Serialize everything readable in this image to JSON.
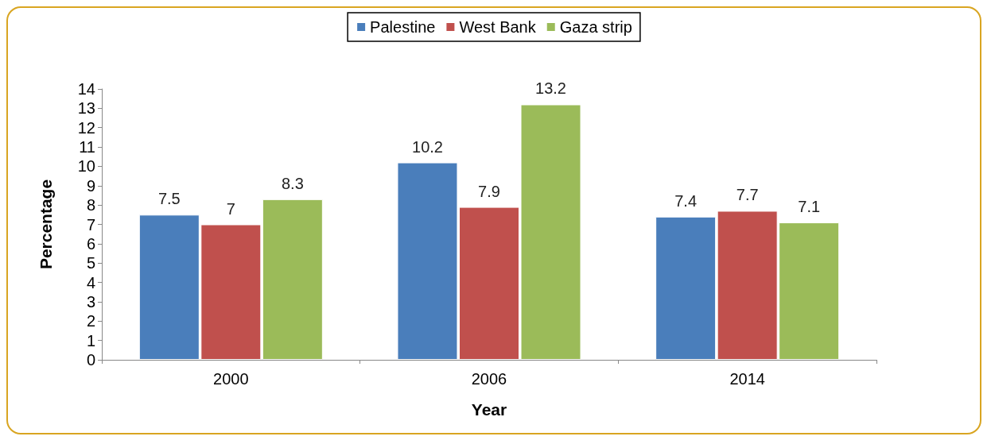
{
  "chart_data": {
    "type": "bar",
    "xlabel": "Year",
    "ylabel": "Percentage",
    "categories": [
      "2000",
      "2006",
      "2014"
    ],
    "series": [
      {
        "name": "Palestine",
        "color": "#4a7ebb",
        "values": [
          7.5,
          10.2,
          7.4
        ]
      },
      {
        "name": "West Bank",
        "color": "#c0504d",
        "values": [
          7,
          7.9,
          7.7
        ]
      },
      {
        "name": "Gaza strip",
        "color": "#9bbb59",
        "values": [
          8.3,
          13.2,
          7.1
        ]
      }
    ],
    "ylim": [
      0,
      14
    ],
    "yticks": [
      0,
      1,
      2,
      3,
      4,
      5,
      6,
      7,
      8,
      9,
      10,
      11,
      12,
      13,
      14
    ],
    "grid": false,
    "legend": "top",
    "data_labels": true
  }
}
